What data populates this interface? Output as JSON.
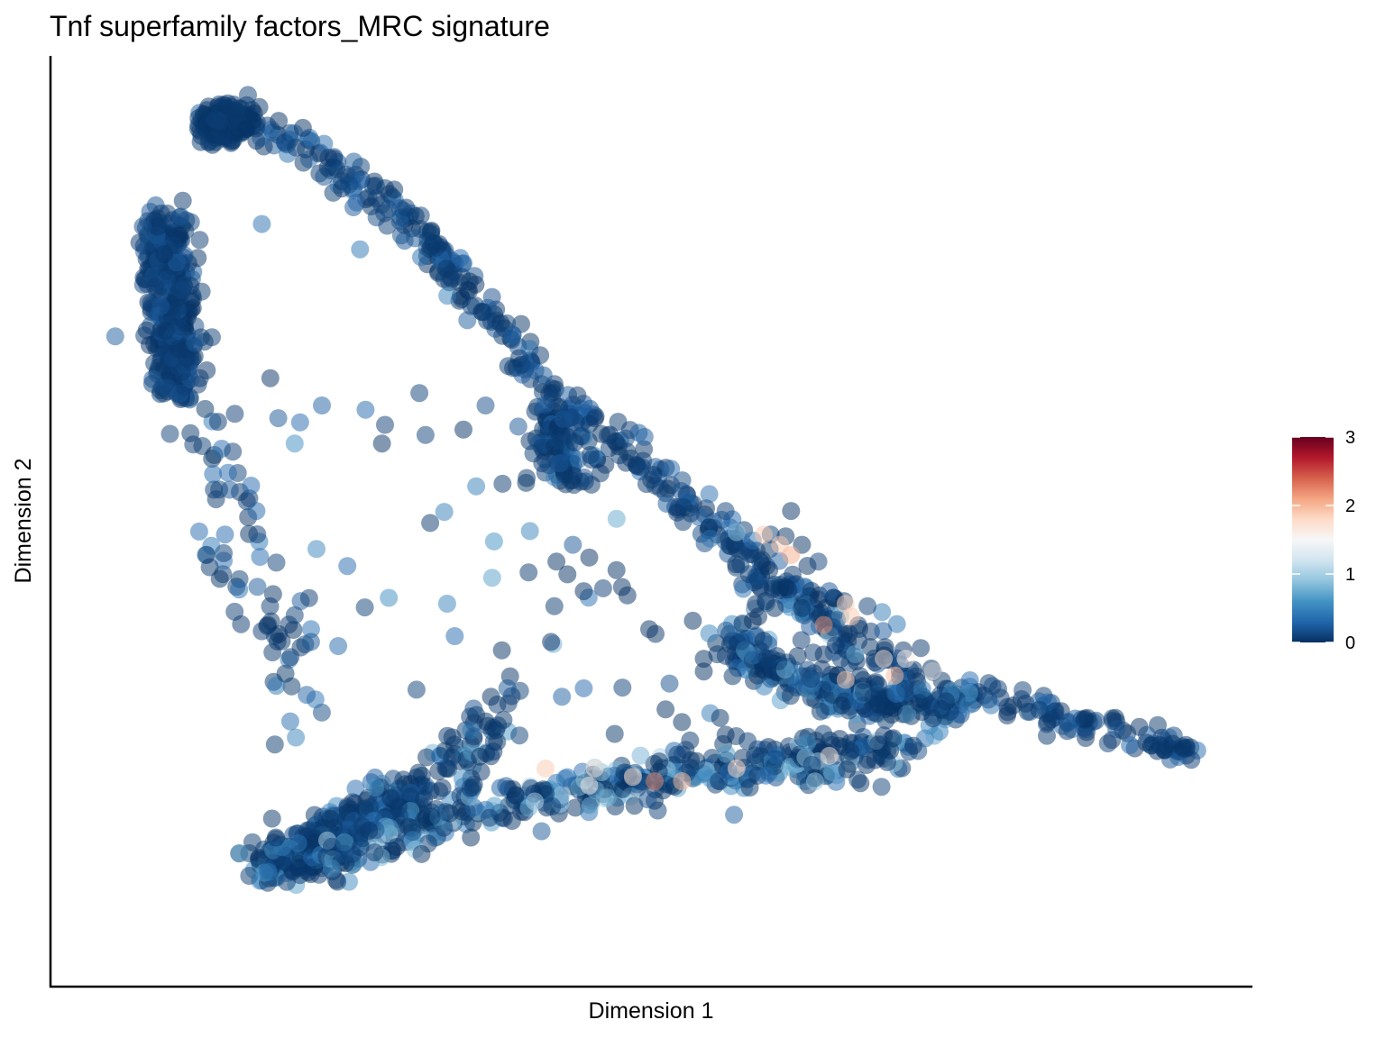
{
  "chart_data": {
    "type": "scatter",
    "title": "Tnf superfamily factors_MRC signature",
    "xlabel": "Dimension 1",
    "ylabel": "Dimension 2",
    "xlim": [
      0,
      100
    ],
    "ylim": [
      0,
      100
    ],
    "x_ticks_shown": false,
    "y_ticks_shown": false,
    "grid": false,
    "point_opacity": 0.5,
    "colorbar": {
      "placement": "right",
      "min": 0,
      "max": 3,
      "ticks": [
        "0",
        "1",
        "2",
        "3"
      ],
      "tick_values": [
        0,
        1,
        2,
        3
      ],
      "palette": [
        "#053061",
        "#2166ac",
        "#4393c3",
        "#92c5de",
        "#d1e5f0",
        "#f7f7f7",
        "#fddbc7",
        "#f4a582",
        "#d6604d",
        "#b2182b",
        "#67001f"
      ]
    },
    "branches": [
      {
        "path": [
          [
            10.0,
            96.0
          ],
          [
            11.0,
            97.5
          ],
          [
            12.5,
            98.0
          ],
          [
            14.0,
            97.0
          ],
          [
            16.0,
            95.5
          ],
          [
            18.5,
            94.0
          ],
          [
            21.0,
            92.0
          ],
          [
            23.5,
            89.5
          ],
          [
            26.0,
            87.5
          ],
          [
            28.5,
            85.0
          ],
          [
            31.0,
            81.0
          ],
          [
            33.0,
            78.0
          ],
          [
            35.0,
            75.0
          ],
          [
            37.0,
            71.5
          ],
          [
            39.0,
            68.0
          ],
          [
            41.0,
            65.5
          ],
          [
            43.0,
            62.5
          ],
          [
            45.5,
            60.5
          ],
          [
            48.0,
            58.5
          ],
          [
            50.5,
            55.5
          ],
          [
            53.0,
            52.0
          ],
          [
            55.5,
            49.5
          ],
          [
            58.0,
            47.0
          ],
          [
            60.5,
            44.0
          ],
          [
            63.0,
            41.0
          ],
          [
            65.5,
            38.0
          ],
          [
            68.0,
            35.5
          ],
          [
            70.5,
            33.5
          ],
          [
            73.0,
            32.0
          ],
          [
            76.0,
            30.5
          ],
          [
            79.0,
            29.5
          ],
          [
            82.0,
            28.5
          ],
          [
            85.0,
            27.5
          ],
          [
            88.0,
            26.5
          ],
          [
            91.0,
            25.5
          ],
          [
            95.0,
            24.0
          ],
          [
            98.0,
            23.0
          ],
          [
            100.0,
            22.5
          ]
        ],
        "n": 520,
        "spread": 0.9,
        "col": [
          0.05,
          0.25
        ]
      },
      {
        "path": [
          [
            10.0,
            97.0
          ],
          [
            10.5,
            96.5
          ],
          [
            11.5,
            97.2
          ],
          [
            12.5,
            96.8
          ]
        ],
        "n": 200,
        "spread": 0.9,
        "col": [
          0.0,
          0.05
        ]
      },
      {
        "path": [
          [
            5.0,
            86.0
          ],
          [
            5.5,
            83.0
          ],
          [
            6.0,
            78.0
          ],
          [
            6.0,
            73.0
          ],
          [
            6.5,
            68.0
          ],
          [
            6.5,
            65.0
          ]
        ],
        "n": 360,
        "spread": 1.2,
        "col": [
          0.0,
          0.15
        ]
      },
      {
        "path": [
          [
            8.0,
            63.0
          ],
          [
            9.0,
            60.0
          ],
          [
            10.5,
            57.0
          ],
          [
            11.5,
            52.0
          ],
          [
            12.5,
            47.0
          ],
          [
            13.5,
            42.0
          ],
          [
            15.0,
            38.0
          ],
          [
            16.5,
            33.0
          ],
          [
            17.5,
            29.0
          ],
          [
            18.5,
            25.0
          ]
        ],
        "n": 70,
        "spread": 1.4,
        "col": [
          0.0,
          0.3
        ]
      },
      {
        "path": [
          [
            15.0,
            8.5
          ],
          [
            18.0,
            10.5
          ],
          [
            21.0,
            12.5
          ],
          [
            25.0,
            15.0
          ],
          [
            29.0,
            17.5
          ]
        ],
        "n": 340,
        "spread": 1.5,
        "col": [
          0.0,
          0.45
        ]
      },
      {
        "path": [
          [
            20.0,
            10.0
          ],
          [
            26.0,
            12.5
          ],
          [
            32.0,
            14.5
          ],
          [
            38.0,
            16.5
          ],
          [
            44.0,
            18.0
          ],
          [
            50.0,
            19.5
          ],
          [
            56.0,
            20.5
          ],
          [
            62.0,
            21.5
          ],
          [
            68.0,
            22.5
          ],
          [
            74.0,
            23.5
          ]
        ],
        "n": 380,
        "spread": 1.3,
        "col": [
          0.1,
          0.7
        ]
      },
      {
        "path": [
          [
            31.0,
            18.0
          ],
          [
            33.5,
            22.0
          ],
          [
            35.0,
            25.5
          ],
          [
            37.0,
            28.0
          ]
        ],
        "n": 60,
        "spread": 1.6,
        "col": [
          0.05,
          0.55
        ]
      },
      {
        "path": [
          [
            46.0,
            18.0
          ],
          [
            50.0,
            19.0
          ],
          [
            54.0,
            20.0
          ],
          [
            58.0,
            20.0
          ],
          [
            62.0,
            20.5
          ],
          [
            66.0,
            21.5
          ],
          [
            70.0,
            22.0
          ]
        ],
        "n": 60,
        "spread": 1.8,
        "col": [
          0.2,
          0.75
        ]
      },
      {
        "path": [
          [
            58.0,
            36.0
          ],
          [
            60.0,
            33.0
          ],
          [
            63.0,
            31.0
          ],
          [
            66.0,
            30.0
          ],
          [
            70.0,
            29.0
          ],
          [
            74.0,
            28.5
          ],
          [
            78.0,
            27.5
          ]
        ],
        "n": 260,
        "spread": 1.2,
        "col": [
          0.1,
          0.55
        ]
      },
      {
        "path": [
          [
            40.5,
            63.5
          ],
          [
            41.5,
            60.0
          ],
          [
            42.0,
            57.0
          ],
          [
            44.0,
            55.5
          ]
        ],
        "n": 110,
        "spread": 1.3,
        "col": [
          0.0,
          0.3
        ]
      },
      {
        "path": [
          [
            58.0,
            47.0
          ],
          [
            60.0,
            44.0
          ],
          [
            62.0,
            42.0
          ],
          [
            64.0,
            40.0
          ],
          [
            66.5,
            38.5
          ],
          [
            70.0,
            37.0
          ],
          [
            73.0,
            36.5
          ]
        ],
        "n": 45,
        "spread": 1.8,
        "col": [
          0.1,
          0.75
        ]
      },
      {
        "path": [
          [
            22.0,
            60.0
          ],
          [
            36.0,
            58.0
          ],
          [
            44.0,
            45.0
          ],
          [
            50.0,
            40.0
          ],
          [
            18.0,
            40.0
          ],
          [
            30.0,
            36.0
          ],
          [
            42.0,
            33.0
          ],
          [
            52.0,
            28.0
          ],
          [
            56.0,
            32.0
          ],
          [
            28.0,
            50.0
          ]
        ],
        "n": 40,
        "spread": 6.0,
        "col": [
          0.05,
          0.5
        ]
      }
    ],
    "points": [
      [
        14.5,
        85.0,
        0.35
      ],
      [
        23.5,
        82.0,
        0.4
      ],
      [
        31.5,
        76.5,
        0.45
      ],
      [
        19.5,
        46.5,
        0.5
      ],
      [
        20.0,
        63.5,
        0.25
      ],
      [
        18.0,
        61.5,
        0.3
      ],
      [
        17.5,
        59.0,
        0.55
      ],
      [
        25.5,
        59.0,
        0.0
      ],
      [
        13.5,
        54.0,
        0.3
      ],
      [
        14.0,
        51.0,
        0.3
      ],
      [
        19.0,
        37.0,
        0.35
      ],
      [
        19.0,
        35.5,
        0.2
      ],
      [
        21.5,
        35.0,
        0.3
      ],
      [
        43.0,
        47.0,
        0.2
      ],
      [
        42.5,
        43.5,
        0.0
      ],
      [
        44.0,
        41.5,
        0.0
      ],
      [
        47.0,
        44.0,
        0.0
      ],
      [
        48.0,
        41.0,
        0.0
      ],
      [
        44.5,
        45.5,
        0.0
      ],
      [
        41.5,
        45.0,
        0.0
      ],
      [
        55.5,
        36.5,
        0.5
      ],
      [
        55.0,
        33.5,
        0.0
      ],
      [
        59.5,
        38.0,
        0.0
      ],
      [
        51.5,
        27.5,
        0.0
      ],
      [
        57.0,
        24.5,
        0.0
      ],
      [
        53.0,
        26.0,
        0.0
      ],
      [
        56.5,
        26.5,
        0.0
      ],
      [
        42.0,
        29.0,
        0.25
      ],
      [
        44.0,
        30.0,
        0.3
      ],
      [
        37.0,
        30.0,
        0.2
      ],
      [
        41.0,
        35.5,
        0.0
      ],
      [
        35.5,
        29.0,
        0.0
      ],
      [
        36.5,
        34.5,
        0.0
      ],
      [
        61.0,
        44.0,
        0.0
      ],
      [
        62.5,
        42.0,
        0.0
      ],
      [
        64.0,
        39.5,
        0.0
      ],
      [
        55.0,
        32.0,
        0.0
      ],
      [
        54.0,
        38.0,
        0.0
      ],
      [
        47.5,
        42.0,
        0.0
      ],
      [
        50.0,
        37.0,
        0.0
      ],
      [
        58.0,
        48.5,
        0.9
      ],
      [
        59.5,
        47.5,
        0.35
      ],
      [
        62.5,
        48.0,
        0.0
      ],
      [
        64.0,
        47.0,
        0.0
      ],
      [
        64.5,
        44.5,
        0.0
      ],
      [
        65.5,
        40.5,
        0.0
      ],
      [
        65.5,
        45.0,
        0.1
      ],
      [
        66.5,
        41.5,
        0.2
      ],
      [
        60.0,
        38.5,
        0.0
      ],
      [
        61.5,
        39.5,
        0.0
      ],
      [
        60.5,
        48.2,
        1.9
      ],
      [
        62.0,
        47.0,
        1.9
      ],
      [
        63.0,
        45.8,
        2.05
      ],
      [
        68.0,
        40.0,
        1.85
      ],
      [
        66.0,
        37.5,
        2.2
      ],
      [
        68.5,
        38.5,
        1.9
      ],
      [
        72.5,
        31.5,
        2.0
      ],
      [
        71.5,
        33.5,
        1.7
      ],
      [
        68.0,
        31.0,
        1.9
      ],
      [
        48.5,
        19.5,
        1.8
      ],
      [
        50.5,
        19.0,
        2.2
      ],
      [
        53.0,
        19.0,
        2.0
      ],
      [
        40.5,
        20.5,
        1.9
      ],
      [
        44.5,
        18.5,
        1.6
      ],
      [
        45.0,
        20.5,
        1.7
      ],
      [
        58.0,
        20.5,
        1.8
      ],
      [
        73.5,
        33.5,
        1.6
      ],
      [
        76.0,
        32.0,
        1.55
      ],
      [
        66.5,
        22.0,
        1.7
      ],
      [
        16.0,
        62.0,
        0.2
      ],
      [
        24.0,
        63.0,
        0.3
      ],
      [
        29.5,
        60.0,
        0.1
      ],
      [
        38.0,
        61.0,
        0.2
      ],
      [
        35.0,
        63.5,
        0.15
      ],
      [
        52.0,
        56.0,
        0.3
      ],
      [
        55.5,
        53.0,
        0.35
      ],
      [
        57.0,
        51.0,
        0.1
      ],
      [
        63.0,
        51.0,
        0.0
      ],
      [
        66.0,
        34.0,
        0.0
      ]
    ]
  }
}
